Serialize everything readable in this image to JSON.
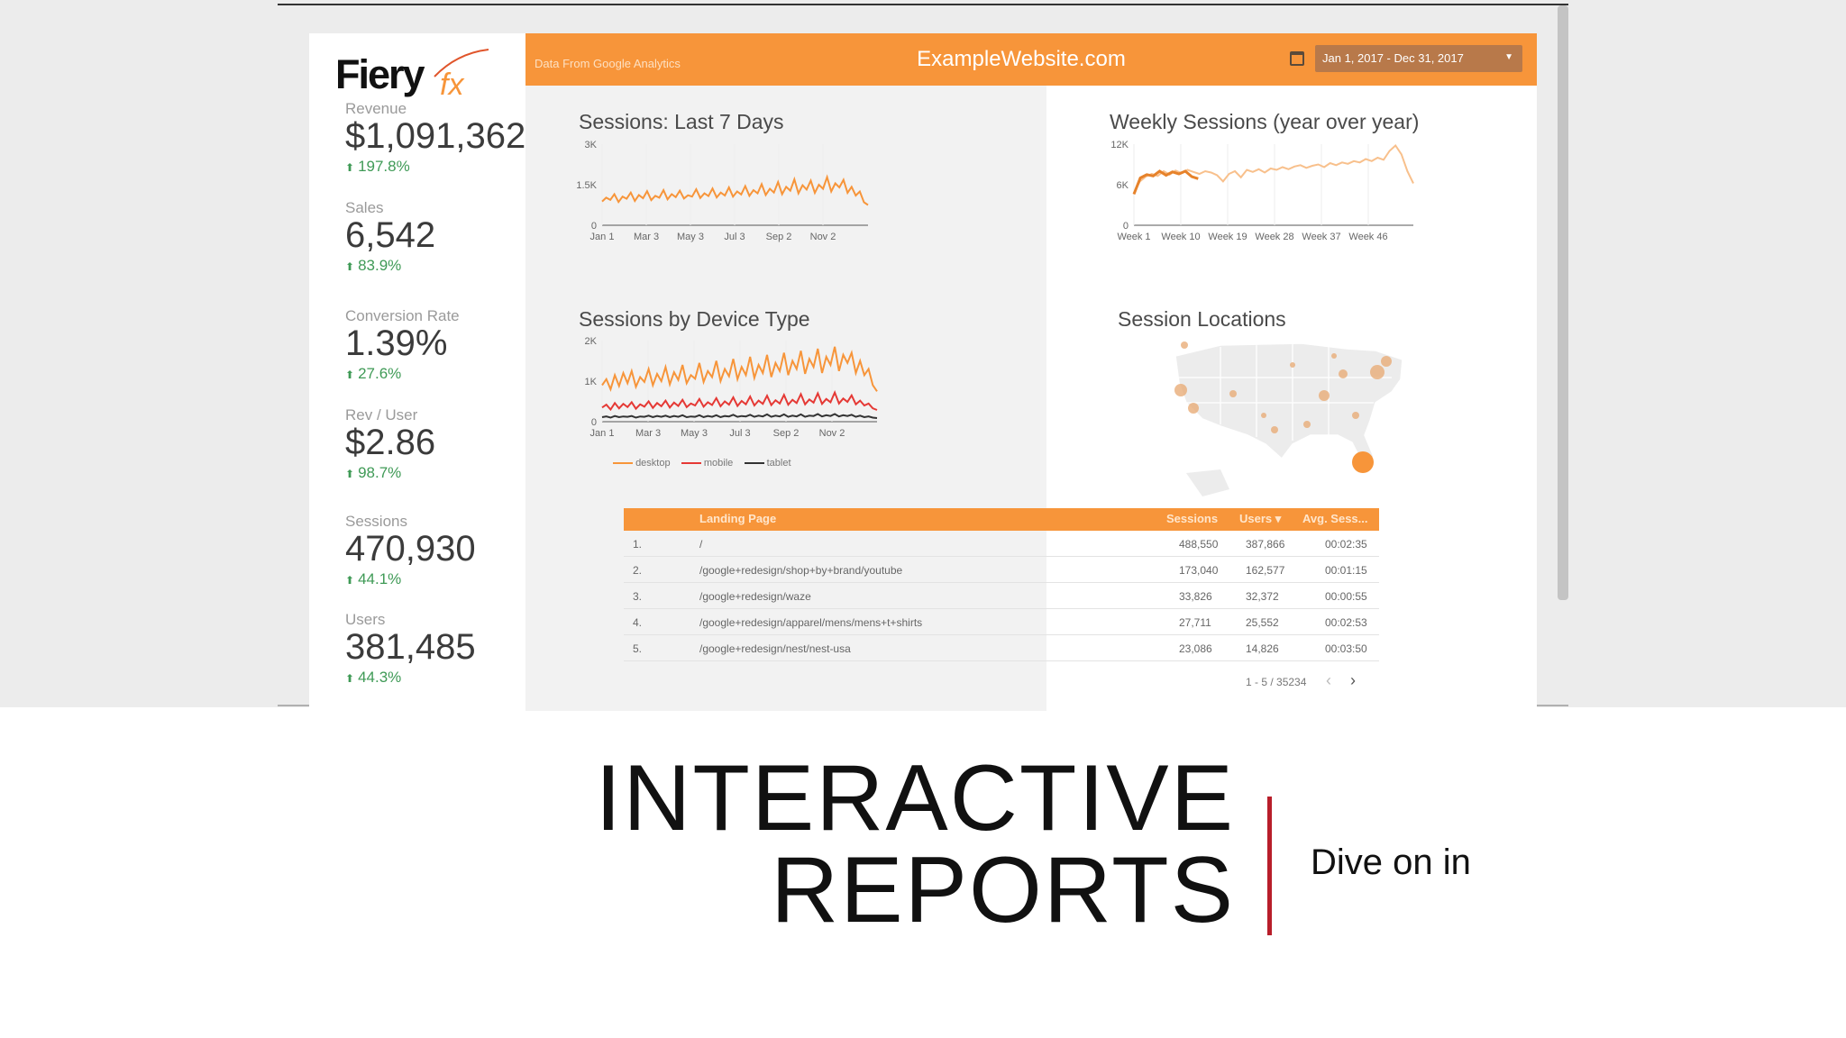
{
  "header": {
    "source_note": "Data From Google Analytics",
    "site_title": "ExampleWebsite.com",
    "date_range": "Jan 1, 2017 - Dec 31, 2017",
    "logo_text": "Fiery",
    "logo_accent": "fx"
  },
  "kpis": [
    {
      "label": "Revenue",
      "value": "$1,091,362",
      "change": "197.8%"
    },
    {
      "label": "Sales",
      "value": "6,542",
      "change": "83.9%"
    },
    {
      "label": "Conversion Rate",
      "value": "1.39%",
      "change": "27.6%"
    },
    {
      "label": "Rev / User",
      "value": "$2.86",
      "change": "98.7%"
    },
    {
      "label": "Sessions",
      "value": "470,930",
      "change": "44.1%"
    },
    {
      "label": "Users",
      "value": "381,485",
      "change": "44.3%"
    }
  ],
  "colors": {
    "accent": "#f7953a",
    "positive": "#3f9a56",
    "divider": "#b81e2a"
  },
  "chart_data": [
    {
      "type": "line",
      "title": "Sessions: Last 7 Days",
      "x_ticks": [
        "Jan 1",
        "Mar 3",
        "May 3",
        "Jul 3",
        "Sep 2",
        "Nov 2"
      ],
      "y_ticks": [
        "3K",
        "1.5K",
        "0"
      ],
      "ylim": [
        0,
        3000
      ],
      "series": [
        {
          "values": [
            880,
            1020,
            940,
            1150,
            860,
            1060,
            980,
            1210,
            900,
            1120,
            1000,
            1260,
            930,
            1090,
            1020,
            1300,
            960,
            1150,
            1040,
            1280,
            990,
            1110,
            1060,
            1330,
            1010,
            1180,
            1080,
            1360,
            1030,
            1210,
            1100,
            1400,
            1060,
            1250,
            1140,
            1450,
            1090,
            1300,
            1180,
            1520,
            1120,
            1350,
            1210,
            1600,
            1150,
            1420,
            1280,
            1700,
            1180,
            1480,
            1320,
            1650,
            1200,
            1500,
            1350,
            1780,
            1250,
            1550,
            1400,
            1680,
            1200,
            1420,
            1100,
            1250,
            850,
            750
          ]
        }
      ]
    },
    {
      "type": "line",
      "title": "Weekly Sessions (year over year)",
      "x_ticks": [
        "Week 1",
        "Week 10",
        "Week 19",
        "Week 28",
        "Week 37",
        "Week 46"
      ],
      "y_ticks": [
        "12K",
        "6K",
        "0"
      ],
      "ylim": [
        0,
        12000
      ],
      "series": [
        {
          "values": [
            4800,
            6500,
            7200,
            7600,
            7300,
            8000,
            7500,
            8100,
            7700,
            8200,
            7900,
            7600,
            8000,
            7800,
            7400,
            6500,
            7600,
            8000,
            7100,
            8200,
            7900,
            8300,
            7800,
            8400,
            8200,
            8600,
            8300,
            8700,
            8900,
            8500,
            8800,
            9000,
            8600,
            9200,
            8900,
            9300,
            9100,
            9500,
            9300,
            9800,
            9500,
            10000,
            9700,
            11000,
            11800,
            10500,
            8000,
            6200
          ]
        },
        {
          "values": [
            4600,
            7000,
            7500,
            7300,
            8000,
            7400,
            7900,
            7600,
            8000,
            7200,
            6900
          ]
        }
      ]
    },
    {
      "type": "line",
      "title": "Sessions by Device Type",
      "x_ticks": [
        "Jan 1",
        "Mar 3",
        "May 3",
        "Jul 3",
        "Sep 2",
        "Nov 2"
      ],
      "y_ticks": [
        "2K",
        "1K",
        "0"
      ],
      "ylim": [
        0,
        2000
      ],
      "legend": "bottom",
      "series": [
        {
          "name": "desktop",
          "values": [
            900,
            1050,
            800,
            1150,
            880,
            1200,
            950,
            1250,
            860,
            1100,
            980,
            1300,
            900,
            1180,
            1000,
            1350,
            920,
            1220,
            1030,
            1400,
            950,
            1150,
            1060,
            1450,
            980,
            1250,
            1100,
            1500,
            1000,
            1300,
            1120,
            1550,
            1050,
            1350,
            1150,
            1600,
            1080,
            1400,
            1200,
            1650,
            1100,
            1450,
            1250,
            1700,
            1150,
            1500,
            1300,
            1750,
            1180,
            1550,
            1350,
            1800,
            1200,
            1600,
            1400,
            1850,
            1250,
            1650,
            1450,
            1700,
            1200,
            1500,
            1150,
            1300,
            900,
            750
          ]
        },
        {
          "name": "mobile",
          "values": [
            350,
            420,
            300,
            460,
            330,
            440,
            360,
            480,
            320,
            430,
            370,
            500,
            340,
            460,
            380,
            520,
            350,
            470,
            390,
            540,
            360,
            450,
            400,
            560,
            370,
            480,
            410,
            580,
            380,
            500,
            420,
            600,
            390,
            510,
            430,
            620,
            400,
            520,
            440,
            640,
            410,
            530,
            450,
            660,
            420,
            540,
            460,
            680,
            430,
            550,
            470,
            700,
            440,
            560,
            480,
            720,
            450,
            570,
            490,
            650,
            430,
            520,
            400,
            450,
            330,
            290
          ]
        },
        {
          "name": "tablet",
          "values": [
            110,
            130,
            100,
            140,
            110,
            130,
            120,
            140,
            100,
            130,
            120,
            150,
            110,
            140,
            120,
            150,
            110,
            140,
            120,
            160,
            110,
            130,
            120,
            160,
            110,
            140,
            120,
            160,
            110,
            140,
            130,
            170,
            120,
            140,
            130,
            170,
            120,
            150,
            130,
            180,
            120,
            150,
            130,
            180,
            120,
            150,
            130,
            180,
            120,
            150,
            140,
            190,
            130,
            160,
            140,
            190,
            130,
            160,
            140,
            170,
            120,
            150,
            110,
            130,
            100,
            90
          ]
        }
      ]
    }
  ],
  "map": {
    "title": "Session Locations"
  },
  "table": {
    "columns": [
      "Landing Page",
      "Sessions",
      "Users",
      "Avg. Sess..."
    ],
    "sort_indicator": "▾",
    "rows": [
      {
        "index": "1.",
        "page": "/",
        "sessions": "488,550",
        "users": "387,866",
        "avg": "00:02:35"
      },
      {
        "index": "2.",
        "page": "/google+redesign/shop+by+brand/youtube",
        "sessions": "173,040",
        "users": "162,577",
        "avg": "00:01:15"
      },
      {
        "index": "3.",
        "page": "/google+redesign/waze",
        "sessions": "33,826",
        "users": "32,372",
        "avg": "00:00:55"
      },
      {
        "index": "4.",
        "page": "/google+redesign/apparel/mens/mens+t+shirts",
        "sessions": "27,711",
        "users": "25,552",
        "avg": "00:02:53"
      },
      {
        "index": "5.",
        "page": "/google+redesign/nest/nest-usa",
        "sessions": "23,086",
        "users": "14,826",
        "avg": "00:03:50"
      }
    ],
    "pager": "1 - 5 / 35234"
  },
  "slide": {
    "title_line1": "INTERACTIVE",
    "title_line2": "REPORTS",
    "subtitle": "Dive on in"
  }
}
